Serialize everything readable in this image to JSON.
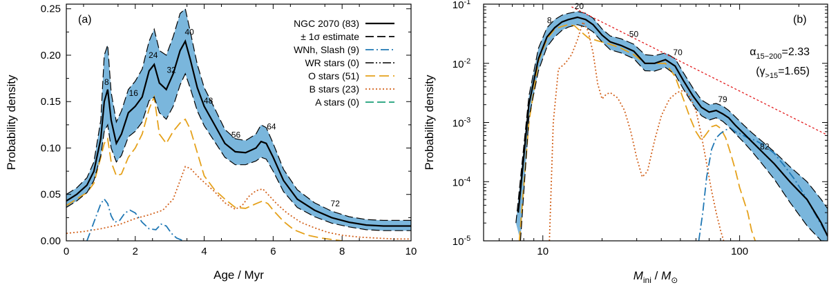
{
  "colors": {
    "band": "#7ab6dc",
    "total": "#000000",
    "wnh": "#1f77b4",
    "wr": "#222222",
    "o": "#e5a11a",
    "b": "#d2601a",
    "a": "#1a9e77",
    "fit": "#e31a1c"
  },
  "chart_data": [
    {
      "id": "a",
      "type": "line",
      "panel_label": "(a)",
      "xlabel": "Age / Myr",
      "ylabel": "Probability density",
      "xlim": [
        0,
        10
      ],
      "ylim": [
        0,
        0.255
      ],
      "xticks": [
        0,
        2,
        4,
        6,
        8,
        10
      ],
      "xtick_labels": [
        "0",
        "2",
        "4",
        "6",
        "8",
        "10"
      ],
      "yticks": [
        0,
        0.05,
        0.1,
        0.15,
        0.2,
        0.25
      ],
      "ytick_labels": [
        "0.00",
        "0.05",
        "0.10",
        "0.15",
        "0.20",
        "0.25"
      ],
      "legend": [
        {
          "label": "NGC 2070 (83)",
          "style": "solid",
          "color": "#000000"
        },
        {
          "label": "± 1σ estimate",
          "style": "dashed",
          "color": "#000000"
        },
        {
          "label": "WNh, Slash (9)",
          "style": "dashdot",
          "color": "#1f77b4"
        },
        {
          "label": "WR stars (0)",
          "style": "dashdotdot",
          "color": "#222222"
        },
        {
          "label": "O stars (51)",
          "style": "longdash",
          "color": "#e5a11a"
        },
        {
          "label": "B stars (23)",
          "style": "dotted",
          "color": "#d2601a"
        },
        {
          "label": "A stars (0)",
          "style": "dashed",
          "color": "#1a9e77"
        }
      ],
      "series": [
        {
          "name": "NGC 2070 (83)",
          "x": [
            0,
            0.3,
            0.6,
            0.8,
            1.0,
            1.1,
            1.2,
            1.3,
            1.45,
            1.6,
            1.8,
            2.0,
            2.2,
            2.4,
            2.55,
            2.7,
            2.9,
            3.1,
            3.3,
            3.45,
            3.6,
            3.8,
            4.0,
            4.3,
            4.6,
            4.9,
            5.2,
            5.5,
            5.65,
            5.8,
            6.0,
            6.3,
            6.7,
            7.2,
            7.7,
            8.2,
            8.7,
            9.2,
            9.7,
            10
          ],
          "y": [
            0.043,
            0.05,
            0.06,
            0.075,
            0.11,
            0.15,
            0.163,
            0.13,
            0.105,
            0.115,
            0.138,
            0.145,
            0.155,
            0.183,
            0.19,
            0.17,
            0.163,
            0.18,
            0.205,
            0.215,
            0.195,
            0.165,
            0.145,
            0.125,
            0.105,
            0.096,
            0.095,
            0.1,
            0.107,
            0.105,
            0.09,
            0.065,
            0.045,
            0.033,
            0.025,
            0.02,
            0.017,
            0.016,
            0.016,
            0.016
          ]
        },
        {
          "name": "+1σ",
          "x": [
            0,
            0.3,
            0.6,
            0.8,
            1.0,
            1.1,
            1.2,
            1.3,
            1.45,
            1.6,
            1.8,
            2.0,
            2.2,
            2.4,
            2.55,
            2.7,
            2.9,
            3.1,
            3.3,
            3.45,
            3.6,
            3.8,
            4.0,
            4.3,
            4.6,
            4.9,
            5.2,
            5.5,
            5.65,
            5.8,
            6.0,
            6.3,
            6.7,
            7.2,
            7.7,
            8.2,
            8.7,
            9.2,
            9.7,
            10
          ],
          "y": [
            0.05,
            0.057,
            0.068,
            0.085,
            0.13,
            0.2,
            0.211,
            0.16,
            0.128,
            0.14,
            0.163,
            0.172,
            0.185,
            0.215,
            0.228,
            0.205,
            0.2,
            0.22,
            0.245,
            0.25,
            0.225,
            0.19,
            0.165,
            0.143,
            0.12,
            0.11,
            0.108,
            0.115,
            0.125,
            0.122,
            0.105,
            0.077,
            0.055,
            0.041,
            0.032,
            0.026,
            0.023,
            0.022,
            0.022,
            0.022
          ]
        },
        {
          "name": "-1σ",
          "x": [
            0,
            0.3,
            0.6,
            0.8,
            1.0,
            1.1,
            1.2,
            1.3,
            1.45,
            1.6,
            1.8,
            2.0,
            2.2,
            2.4,
            2.55,
            2.7,
            2.9,
            3.1,
            3.3,
            3.45,
            3.6,
            3.8,
            4.0,
            4.3,
            4.6,
            4.9,
            5.2,
            5.5,
            5.65,
            5.8,
            6.0,
            6.3,
            6.7,
            7.2,
            7.7,
            8.2,
            8.7,
            9.2,
            9.7,
            10
          ],
          "y": [
            0.036,
            0.043,
            0.052,
            0.065,
            0.092,
            0.118,
            0.125,
            0.1,
            0.085,
            0.092,
            0.112,
            0.118,
            0.128,
            0.151,
            0.155,
            0.138,
            0.131,
            0.145,
            0.168,
            0.18,
            0.164,
            0.14,
            0.124,
            0.107,
            0.09,
            0.082,
            0.082,
            0.086,
            0.09,
            0.088,
            0.075,
            0.053,
            0.036,
            0.026,
            0.019,
            0.015,
            0.012,
            0.011,
            0.011,
            0.011
          ]
        },
        {
          "name": "WNh, Slash (9)",
          "x": [
            0.6,
            0.8,
            1.0,
            1.1,
            1.2,
            1.3,
            1.4,
            1.55,
            1.7,
            1.85,
            2.0,
            2.2,
            2.4,
            2.6,
            2.75,
            2.9,
            3.05,
            3.2,
            3.4
          ],
          "y": [
            0.0,
            0.02,
            0.04,
            0.045,
            0.04,
            0.027,
            0.02,
            0.022,
            0.03,
            0.033,
            0.03,
            0.02,
            0.013,
            0.012,
            0.018,
            0.016,
            0.008,
            0.003,
            0.0
          ]
        },
        {
          "name": "O stars (51)",
          "x": [
            0,
            0.3,
            0.6,
            0.8,
            1.0,
            1.1,
            1.2,
            1.3,
            1.45,
            1.6,
            1.8,
            2.0,
            2.2,
            2.4,
            2.55,
            2.7,
            2.9,
            3.1,
            3.3,
            3.45,
            3.6,
            3.8,
            4.0,
            4.3,
            4.6,
            4.9,
            5.2,
            5.5,
            5.7,
            5.85,
            6.0,
            6.3,
            6.6,
            7.0,
            7.4,
            7.8,
            8.0
          ],
          "y": [
            0.038,
            0.045,
            0.052,
            0.062,
            0.09,
            0.105,
            0.11,
            0.085,
            0.07,
            0.072,
            0.09,
            0.1,
            0.115,
            0.142,
            0.155,
            0.115,
            0.105,
            0.118,
            0.127,
            0.131,
            0.12,
            0.095,
            0.07,
            0.055,
            0.045,
            0.036,
            0.035,
            0.04,
            0.043,
            0.04,
            0.033,
            0.021,
            0.012,
            0.006,
            0.003,
            0.001,
            0.0
          ]
        },
        {
          "name": "B stars (23)",
          "x": [
            0,
            0.5,
            1.0,
            1.5,
            2.0,
            2.4,
            2.8,
            3.1,
            3.3,
            3.45,
            3.6,
            3.8,
            4.0,
            4.3,
            4.6,
            4.9,
            5.1,
            5.3,
            5.5,
            5.7,
            5.9,
            6.1,
            6.4,
            6.8,
            7.2,
            7.6,
            8.0,
            8.5,
            9.0,
            9.5,
            10
          ],
          "y": [
            0.008,
            0.01,
            0.013,
            0.017,
            0.024,
            0.028,
            0.033,
            0.045,
            0.065,
            0.08,
            0.078,
            0.07,
            0.063,
            0.053,
            0.041,
            0.034,
            0.038,
            0.048,
            0.054,
            0.056,
            0.048,
            0.04,
            0.03,
            0.02,
            0.014,
            0.009,
            0.006,
            0.004,
            0.003,
            0.002,
            0.002
          ]
        }
      ],
      "annotations": [
        {
          "text": "8",
          "x": 1.17,
          "y": 0.168
        },
        {
          "text": "16",
          "x": 1.95,
          "y": 0.156
        },
        {
          "text": "24",
          "x": 2.52,
          "y": 0.197
        },
        {
          "text": "32",
          "x": 3.05,
          "y": 0.181
        },
        {
          "text": "40",
          "x": 3.57,
          "y": 0.222
        },
        {
          "text": "48",
          "x": 4.12,
          "y": 0.148
        },
        {
          "text": "56",
          "x": 4.92,
          "y": 0.111
        },
        {
          "text": "64",
          "x": 5.95,
          "y": 0.12
        },
        {
          "text": "72",
          "x": 7.8,
          "y": 0.037
        }
      ]
    },
    {
      "id": "b",
      "type": "line",
      "panel_label": "(b)",
      "xlabel": "M_ini / M_⊙",
      "xlabel_parts": {
        "m": "M",
        "sub": "ini",
        "sep": " / ",
        "m2": "M",
        "sun": "⊙"
      },
      "ylabel": "Probability density",
      "xscale": "log",
      "yscale": "log",
      "xlim": [
        5,
        280
      ],
      "ylim": [
        1e-05,
        0.1
      ],
      "xticks": [
        10,
        100
      ],
      "xtick_labels": [
        "10",
        "100"
      ],
      "yticks_exp": [
        -5,
        -4,
        -3,
        -2,
        -1
      ],
      "ytick_base": "10",
      "fit_text": {
        "alpha": "α",
        "alpha_sub": "15−200",
        "alpha_val": "=2.33",
        "gamma_open": "(γ",
        "gamma_sub": ">15",
        "gamma_val": "=1.65)"
      },
      "series": [
        {
          "name": "NGC 2070 (83)",
          "x": [
            7.5,
            8.5,
            9.5,
            10.5,
            11.5,
            12.5,
            13.5,
            15,
            16.5,
            18,
            20,
            22,
            25,
            29,
            33,
            37,
            42,
            47,
            52,
            58,
            64,
            70,
            76,
            82,
            88,
            95,
            105,
            115,
            130,
            150,
            180,
            220,
            260,
            280
          ],
          "y": [
            3e-05,
            0.002,
            0.012,
            0.028,
            0.04,
            0.05,
            0.055,
            0.06,
            0.055,
            0.045,
            0.03,
            0.023,
            0.02,
            0.016,
            0.01,
            0.01,
            0.0115,
            0.009,
            0.005,
            0.0028,
            0.0018,
            0.0015,
            0.0016,
            0.0014,
            0.0012,
            0.0009,
            0.00065,
            0.00048,
            0.00032,
            0.0002,
            0.0001,
            5e-05,
            2e-05,
            1.2e-05
          ]
        },
        {
          "name": "+1σ",
          "x": [
            7.3,
            8.5,
            9.5,
            10.5,
            11.5,
            12.5,
            13.5,
            15,
            16.5,
            18,
            20,
            22,
            25,
            29,
            33,
            37,
            42,
            47,
            52,
            58,
            64,
            70,
            76,
            82,
            88,
            95,
            105,
            115,
            130,
            150,
            180,
            220,
            260,
            280
          ],
          "y": [
            2e-05,
            0.0028,
            0.018,
            0.04,
            0.055,
            0.065,
            0.07,
            0.075,
            0.07,
            0.058,
            0.038,
            0.029,
            0.026,
            0.021,
            0.014,
            0.0135,
            0.015,
            0.012,
            0.0068,
            0.0038,
            0.0024,
            0.002,
            0.0021,
            0.0019,
            0.0016,
            0.00125,
            0.0009,
            0.00068,
            0.00048,
            0.00032,
            0.00018,
            0.0001,
            5e-05,
            3.5e-05
          ]
        },
        {
          "name": "-1σ",
          "x": [
            7.7,
            8.5,
            9.5,
            10.5,
            11.5,
            12.5,
            13.5,
            15,
            16.5,
            18,
            20,
            22,
            25,
            29,
            33,
            37,
            42,
            47,
            52,
            58,
            64,
            70,
            76,
            82,
            88,
            95,
            105,
            115,
            130,
            150,
            180,
            220,
            260,
            280
          ],
          "y": [
            1e-05,
            0.0012,
            0.0075,
            0.019,
            0.028,
            0.036,
            0.041,
            0.045,
            0.041,
            0.034,
            0.023,
            0.017,
            0.015,
            0.012,
            0.0075,
            0.0074,
            0.0085,
            0.0065,
            0.0036,
            0.002,
            0.0013,
            0.0011,
            0.0012,
            0.00105,
            0.00085,
            0.00065,
            0.00046,
            0.00033,
            0.0002,
            0.00011,
            4.5e-05,
            1.8e-05,
            1e-05,
            1e-05
          ]
        },
        {
          "name": "WNh, Slash (9)",
          "x": [
            62,
            65,
            68,
            72,
            76,
            80,
            85,
            90,
            95,
            100,
            110,
            120,
            135,
            150,
            170,
            190,
            210,
            240,
            270,
            280
          ],
          "y": [
            1e-05,
            3e-05,
            0.00012,
            0.00035,
            0.00055,
            0.00065,
            0.00075,
            0.0008,
            0.0007,
            0.00065,
            0.00055,
            0.0005,
            0.0004,
            0.0003,
            0.00018,
            0.00011,
            6.5e-05,
            3e-05,
            1.5e-05,
            1.2e-05
          ]
        },
        {
          "name": "O stars (51)",
          "x": [
            7.6,
            8.5,
            9.5,
            10.5,
            11.5,
            12.5,
            13.5,
            14.5,
            15.5,
            17,
            19,
            22,
            25,
            29,
            33,
            37,
            42,
            47,
            52,
            56,
            60,
            64,
            68,
            72,
            76,
            80,
            85,
            90,
            95,
            100,
            110,
            115,
            120
          ],
          "y": [
            1e-05,
            0.001,
            0.011,
            0.026,
            0.038,
            0.042,
            0.045,
            0.043,
            0.035,
            0.027,
            0.024,
            0.021,
            0.018,
            0.014,
            0.01,
            0.01,
            0.01,
            0.006,
            0.0024,
            0.0012,
            0.0007,
            0.0005,
            0.00065,
            0.00085,
            0.0009,
            0.0008,
            0.00055,
            0.0003,
            0.00016,
            8e-05,
            3e-05,
            1.5e-05,
            1e-05
          ]
        },
        {
          "name": "B stars (23)",
          "x": [
            10.8,
            11.3,
            12,
            13,
            14,
            15,
            16,
            17,
            18,
            19,
            20,
            21,
            22,
            24,
            26,
            28,
            30,
            32,
            34,
            37,
            40,
            44,
            48,
            52,
            56,
            60,
            64,
            68,
            72,
            76,
            80,
            83
          ],
          "y": [
            1e-05,
            0.001,
            0.008,
            0.01,
            0.014,
            0.025,
            0.05,
            0.035,
            0.015,
            0.0045,
            0.0025,
            0.003,
            0.0032,
            0.0026,
            0.0016,
            0.0007,
            0.00025,
            0.00012,
            0.00015,
            0.0005,
            0.0013,
            0.0025,
            0.0032,
            0.0035,
            0.0027,
            0.0016,
            0.0006,
            0.0002,
            7e-05,
            3e-05,
            1.5e-05,
            1e-05
          ]
        },
        {
          "name": "power-law fit",
          "x": [
            14,
            280
          ],
          "y": [
            0.09,
            0.00061
          ]
        }
      ],
      "annotations": [
        {
          "text": "8",
          "x": 10.8,
          "y": 0.048
        },
        {
          "text": "20",
          "x": 15.3,
          "y": 0.083
        },
        {
          "text": "50",
          "x": 29.0,
          "y": 0.028
        },
        {
          "text": "70",
          "x": 48.5,
          "y": 0.0137
        },
        {
          "text": "79",
          "x": 82.0,
          "y": 0.0022
        },
        {
          "text": "82",
          "x": 134,
          "y": 0.00035
        }
      ]
    }
  ]
}
